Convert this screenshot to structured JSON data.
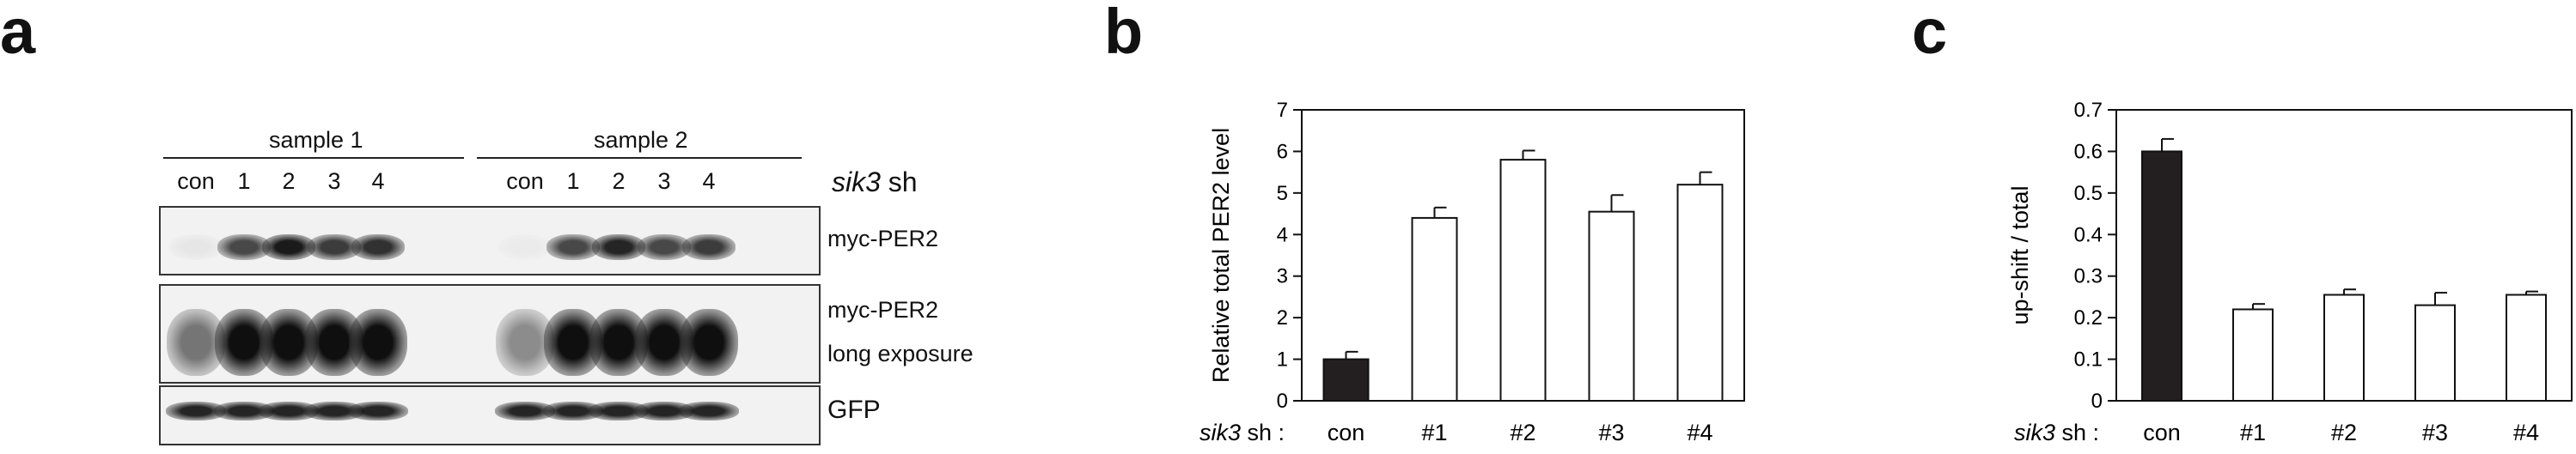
{
  "panels": {
    "a": "a",
    "b": "b",
    "c": "c"
  },
  "blot": {
    "sample_labels": [
      "sample 1",
      "sample 2"
    ],
    "lanes_1": [
      "con",
      "1",
      "2",
      "3",
      "4"
    ],
    "lanes_2": [
      "con",
      "1",
      "2",
      "3",
      "4"
    ],
    "gene_label": "sik3",
    "gene_suffix": " sh",
    "row_labels": {
      "row1": "myc-PER2",
      "row2_line1": "myc-PER2",
      "row2_line2": "long exposure",
      "row3": "GFP"
    },
    "band_intensity": {
      "row1": [
        0.05,
        0.75,
        0.95,
        0.8,
        0.85,
        0.03,
        0.75,
        0.9,
        0.75,
        0.8
      ],
      "row2": [
        0.55,
        1.0,
        1.0,
        1.0,
        1.0,
        0.45,
        1.0,
        1.0,
        1.0,
        1.0
      ],
      "row3": [
        0.9,
        0.9,
        0.9,
        0.9,
        0.9,
        0.9,
        0.9,
        0.9,
        0.9,
        0.9
      ]
    }
  },
  "chart_data": [
    {
      "type": "bar",
      "panel": "b",
      "categories": [
        "con",
        "#1",
        "#2",
        "#3",
        "#4"
      ],
      "values": [
        1.0,
        4.4,
        5.8,
        4.55,
        5.2
      ],
      "errors": [
        0.18,
        0.25,
        0.22,
        0.4,
        0.3
      ],
      "fills": [
        "#231f20",
        "#ffffff",
        "#ffffff",
        "#ffffff",
        "#ffffff"
      ],
      "ylabel": "Relative total PER2 level",
      "xprefix_italic": "sik3",
      "xprefix_rest": " sh :",
      "ylim": [
        0,
        7
      ],
      "yticks": [
        "0",
        "1",
        "2",
        "3",
        "4",
        "5",
        "6",
        "7"
      ],
      "ytick_values": [
        0,
        1,
        2,
        3,
        4,
        5,
        6,
        7
      ]
    },
    {
      "type": "bar",
      "panel": "c",
      "categories": [
        "con",
        "#1",
        "#2",
        "#3",
        "#4"
      ],
      "values": [
        0.6,
        0.22,
        0.255,
        0.23,
        0.255
      ],
      "errors": [
        0.03,
        0.013,
        0.013,
        0.03,
        0.008
      ],
      "fills": [
        "#231f20",
        "#ffffff",
        "#ffffff",
        "#ffffff",
        "#ffffff"
      ],
      "ylabel": "up-shift / total",
      "xprefix_italic": "sik3",
      "xprefix_rest": " sh :",
      "ylim": [
        0,
        0.7
      ],
      "yticks": [
        "0",
        "0.1",
        "0.2",
        "0.3",
        "0.4",
        "0.5",
        "0.6",
        "0.7"
      ],
      "ytick_values": [
        0,
        0.1,
        0.2,
        0.3,
        0.4,
        0.5,
        0.6,
        0.7
      ]
    }
  ]
}
